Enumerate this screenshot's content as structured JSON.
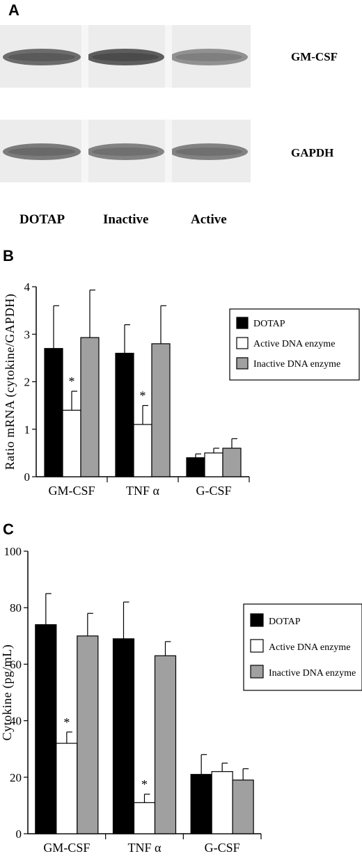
{
  "panel_a": {
    "letter": "A",
    "bands": [
      "GM-CSF",
      "GAPDH"
    ],
    "lanes": [
      "DOTAP",
      "Inactive",
      "Active"
    ],
    "band_intensity": {
      "GM-CSF": [
        0.85,
        0.95,
        0.6
      ],
      "GAPDH": [
        0.75,
        0.7,
        0.7
      ]
    }
  },
  "panel_b": {
    "letter": "B"
  },
  "panel_c": {
    "letter": "C"
  },
  "colors": {
    "dotap": "#000000",
    "active": "#ffffff",
    "inactive": "#a0a0a0"
  },
  "chart_data": [
    {
      "type": "bar",
      "panel": "B",
      "ylabel": "Ratio mRNA (cytokine/GAPDH)",
      "ylim": [
        0,
        4
      ],
      "yticks": [
        "0",
        "1",
        "2",
        "3",
        "4"
      ],
      "categories": [
        "GM-CSF",
        "TNF α",
        "G-CSF"
      ],
      "series": [
        {
          "name": "DOTAP",
          "values": [
            2.7,
            2.6,
            0.4
          ],
          "errors": [
            0.9,
            0.6,
            0.08
          ]
        },
        {
          "name": "Active DNA enzyme",
          "values": [
            1.4,
            1.1,
            0.5
          ],
          "errors": [
            0.4,
            0.4,
            0.1
          ]
        },
        {
          "name": "Inactive DNA enzyme",
          "values": [
            2.93,
            2.8,
            0.6
          ],
          "errors": [
            1.0,
            0.8,
            0.2
          ]
        }
      ],
      "significance": [
        "*",
        "*",
        ""
      ],
      "legend_position": "right"
    },
    {
      "type": "bar",
      "panel": "C",
      "ylabel": "Cytokine (pg/mL)",
      "ylim": [
        0,
        100
      ],
      "yticks": [
        "0",
        "20",
        "40",
        "60",
        "80",
        "100"
      ],
      "categories": [
        "GM-CSF",
        "TNF α",
        "G-CSF"
      ],
      "series": [
        {
          "name": "DOTAP",
          "values": [
            74,
            69,
            21
          ],
          "errors": [
            11,
            13,
            7
          ]
        },
        {
          "name": "Active DNA enzyme",
          "values": [
            32,
            11,
            22
          ],
          "errors": [
            4,
            3,
            3
          ]
        },
        {
          "name": "Inactive DNA enzyme",
          "values": [
            70,
            63,
            19
          ],
          "errors": [
            8,
            5,
            4
          ]
        }
      ],
      "significance": [
        "*",
        "*",
        ""
      ],
      "legend_position": "right"
    }
  ]
}
